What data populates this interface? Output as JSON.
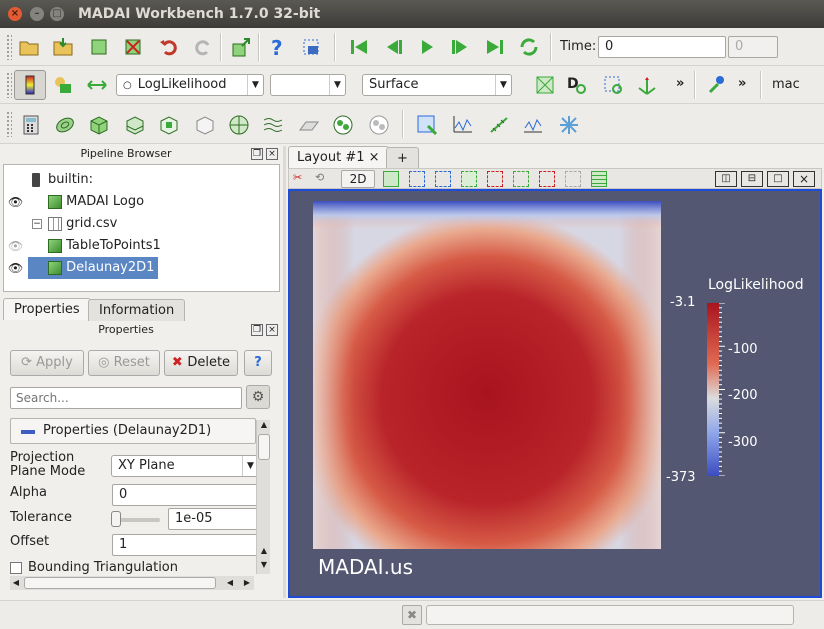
{
  "window": {
    "title": "MADAI Workbench 1.7.0 32-bit",
    "controls": [
      "×",
      "–",
      "□"
    ]
  },
  "toolbar1": {
    "time_label": "Time:",
    "time_value": "0",
    "timestep_value": "0"
  },
  "toolbar2": {
    "color_by": "LogLikelihood",
    "component": "",
    "representation": "Surface",
    "more1": "»",
    "more2": "»",
    "server": "mac"
  },
  "pipeline": {
    "header": "Pipeline Browser",
    "items": [
      {
        "label": "builtin:"
      },
      {
        "label": "MADAI Logo"
      },
      {
        "label": "grid.csv"
      },
      {
        "label": "TableToPoints1"
      },
      {
        "label": "Delaunay2D1"
      }
    ]
  },
  "tabs": {
    "properties": "Properties",
    "information": "Information"
  },
  "properties": {
    "header": "Properties",
    "apply": "Apply",
    "reset": "Reset",
    "delete": "Delete",
    "help": "?",
    "search_placeholder": "Search...",
    "section": "Properties (Delaunay2D1)",
    "projection_label": "Projection\nPlane Mode",
    "projection_value": "XY Plane",
    "alpha_label": "Alpha",
    "alpha_value": "0",
    "tolerance_label": "Tolerance",
    "tolerance_value": "1e-05",
    "offset_label": "Offset",
    "offset_value": "1",
    "bounding_label": "Bounding Triangulation"
  },
  "layout": {
    "tab_label": "Layout #1",
    "close": "×",
    "add": "+",
    "view_2d": "2D"
  },
  "colorbar": {
    "title": "LogLikelihood",
    "ticks": [
      "-3.1",
      "-100",
      "-200",
      "-300",
      "-373"
    ]
  },
  "watermark": "MADAI.us",
  "colors": {
    "view_bg": "#535771",
    "view_border": "#1e4bd8",
    "high": "#a8141e",
    "mid": "#dcdcdc",
    "low": "#3b4cc0"
  }
}
